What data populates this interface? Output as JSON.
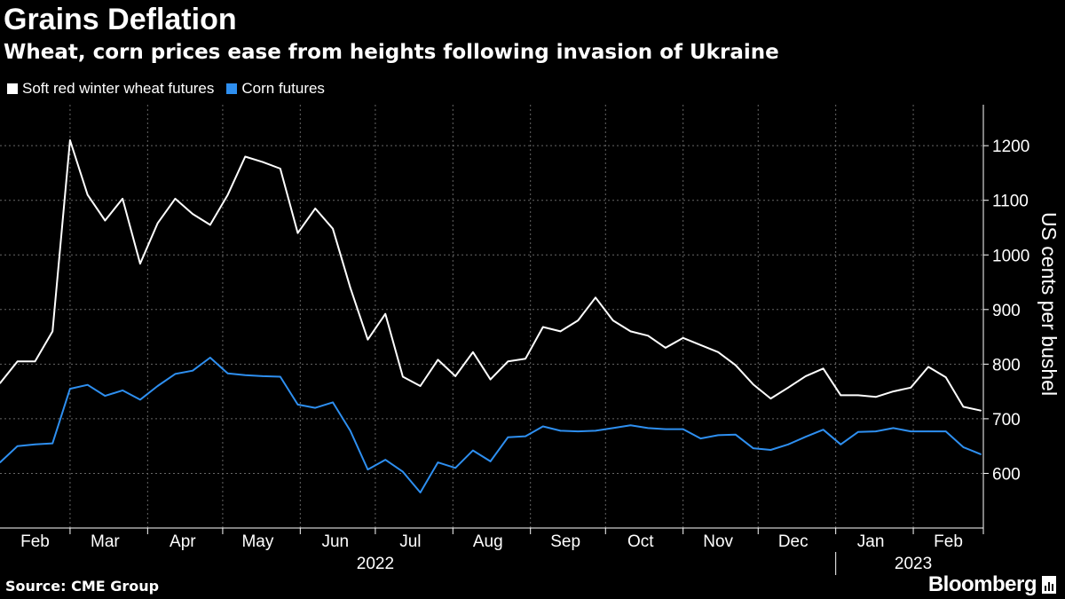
{
  "title": "Grains Deflation",
  "subtitle": "Wheat, corn prices ease from heights following invasion of Ukraine",
  "source": "Source: CME Group",
  "brand": "Bloomberg",
  "colors": {
    "background": "#000000",
    "wheat": "#ffffff",
    "corn": "#2e8ff0",
    "grid": "#666666"
  },
  "chart_data": {
    "type": "line",
    "ylabel": "US cents per bushel",
    "ylim": [
      500,
      1275
    ],
    "y_ticks": [
      600,
      700,
      800,
      900,
      1000,
      1100,
      1200
    ],
    "x_range": [
      "2022-02-01",
      "2023-03-01"
    ],
    "grid": true,
    "legend_position": "top-left",
    "month_labels": [
      {
        "label": "Feb",
        "date": "2022-02-15"
      },
      {
        "label": "Mar",
        "date": "2022-03-15"
      },
      {
        "label": "Apr",
        "date": "2022-04-15"
      },
      {
        "label": "May",
        "date": "2022-05-15"
      },
      {
        "label": "Jun",
        "date": "2022-06-15"
      },
      {
        "label": "Jul",
        "date": "2022-07-15"
      },
      {
        "label": "Aug",
        "date": "2022-08-15"
      },
      {
        "label": "Sep",
        "date": "2022-09-15"
      },
      {
        "label": "Oct",
        "date": "2022-10-15"
      },
      {
        "label": "Nov",
        "date": "2022-11-15"
      },
      {
        "label": "Dec",
        "date": "2022-12-15"
      },
      {
        "label": "Jan",
        "date": "2023-01-15"
      },
      {
        "label": "Feb",
        "date": "2023-02-15"
      }
    ],
    "year_labels": [
      {
        "label": "2022",
        "date": "2022-07-01"
      },
      {
        "label": "2023",
        "date": "2023-02-01"
      }
    ],
    "x": [
      "2022-02-01",
      "2022-02-08",
      "2022-02-15",
      "2022-02-22",
      "2022-03-01",
      "2022-03-08",
      "2022-03-15",
      "2022-03-22",
      "2022-03-29",
      "2022-04-05",
      "2022-04-12",
      "2022-04-19",
      "2022-04-26",
      "2022-05-03",
      "2022-05-10",
      "2022-05-17",
      "2022-05-24",
      "2022-05-31",
      "2022-06-07",
      "2022-06-14",
      "2022-06-21",
      "2022-06-28",
      "2022-07-05",
      "2022-07-12",
      "2022-07-19",
      "2022-07-26",
      "2022-08-02",
      "2022-08-09",
      "2022-08-16",
      "2022-08-23",
      "2022-08-30",
      "2022-09-06",
      "2022-09-13",
      "2022-09-20",
      "2022-09-27",
      "2022-10-04",
      "2022-10-11",
      "2022-10-18",
      "2022-10-25",
      "2022-11-01",
      "2022-11-08",
      "2022-11-15",
      "2022-11-22",
      "2022-11-29",
      "2022-12-06",
      "2022-12-13",
      "2022-12-20",
      "2022-12-27",
      "2023-01-03",
      "2023-01-10",
      "2023-01-17",
      "2023-01-24",
      "2023-01-31",
      "2023-02-07",
      "2023-02-14",
      "2023-02-21",
      "2023-02-28"
    ],
    "series": [
      {
        "name": "Soft red winter wheat futures",
        "color": "#ffffff",
        "values": [
          765,
          805,
          805,
          860,
          1210,
          1110,
          1063,
          1103,
          984,
          1058,
          1103,
          1075,
          1055,
          1110,
          1180,
          1170,
          1158,
          1040,
          1085,
          1048,
          940,
          845,
          892,
          777,
          760,
          808,
          778,
          822,
          772,
          805,
          810,
          868,
          860,
          880,
          922,
          880,
          860,
          852,
          830,
          848,
          835,
          822,
          798,
          763,
          737,
          757,
          778,
          792,
          743,
          743,
          740,
          750,
          757,
          795,
          776,
          722,
          715
        ]
      },
      {
        "name": "Corn futures",
        "color": "#2e8ff0",
        "values": [
          620,
          650,
          653,
          655,
          755,
          762,
          742,
          752,
          735,
          760,
          782,
          788,
          812,
          783,
          780,
          778,
          777,
          726,
          720,
          730,
          678,
          607,
          625,
          603,
          565,
          620,
          610,
          642,
          622,
          666,
          668,
          686,
          678,
          677,
          678,
          683,
          688,
          683,
          681,
          681,
          664,
          670,
          671,
          646,
          643,
          653,
          667,
          680,
          653,
          676,
          677,
          683,
          677,
          677,
          677,
          648,
          635
        ]
      }
    ]
  }
}
